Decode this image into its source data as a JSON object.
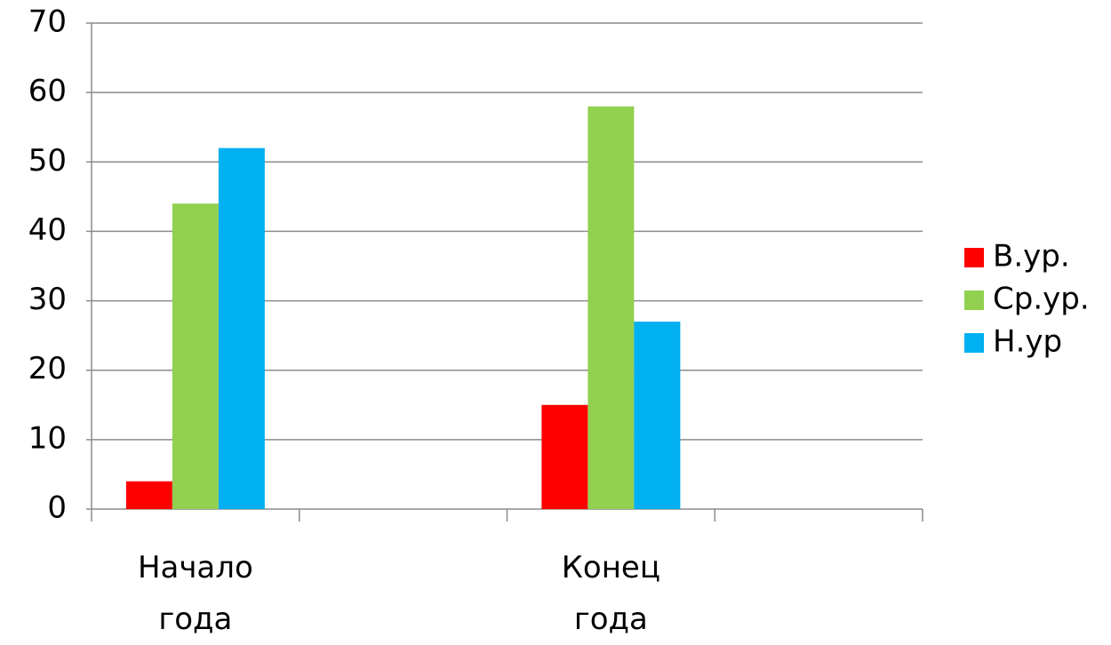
{
  "chart_data": {
    "type": "bar",
    "categories": [
      "Начало года",
      null,
      "Конец года",
      null
    ],
    "series": [
      {
        "name": "В.ур.",
        "color": "#ff0000",
        "values": [
          4,
          null,
          15,
          null
        ]
      },
      {
        "name": "Ср.ур.",
        "color": "#92d050",
        "values": [
          44,
          null,
          58,
          null
        ]
      },
      {
        "name": "Н.ур",
        "color": "#00b0f0",
        "values": [
          52,
          null,
          27,
          null
        ]
      }
    ],
    "ylim": [
      0,
      70
    ],
    "yticks": [
      0,
      10,
      20,
      30,
      40,
      50,
      60,
      70
    ],
    "grid": true,
    "legend": "right"
  }
}
